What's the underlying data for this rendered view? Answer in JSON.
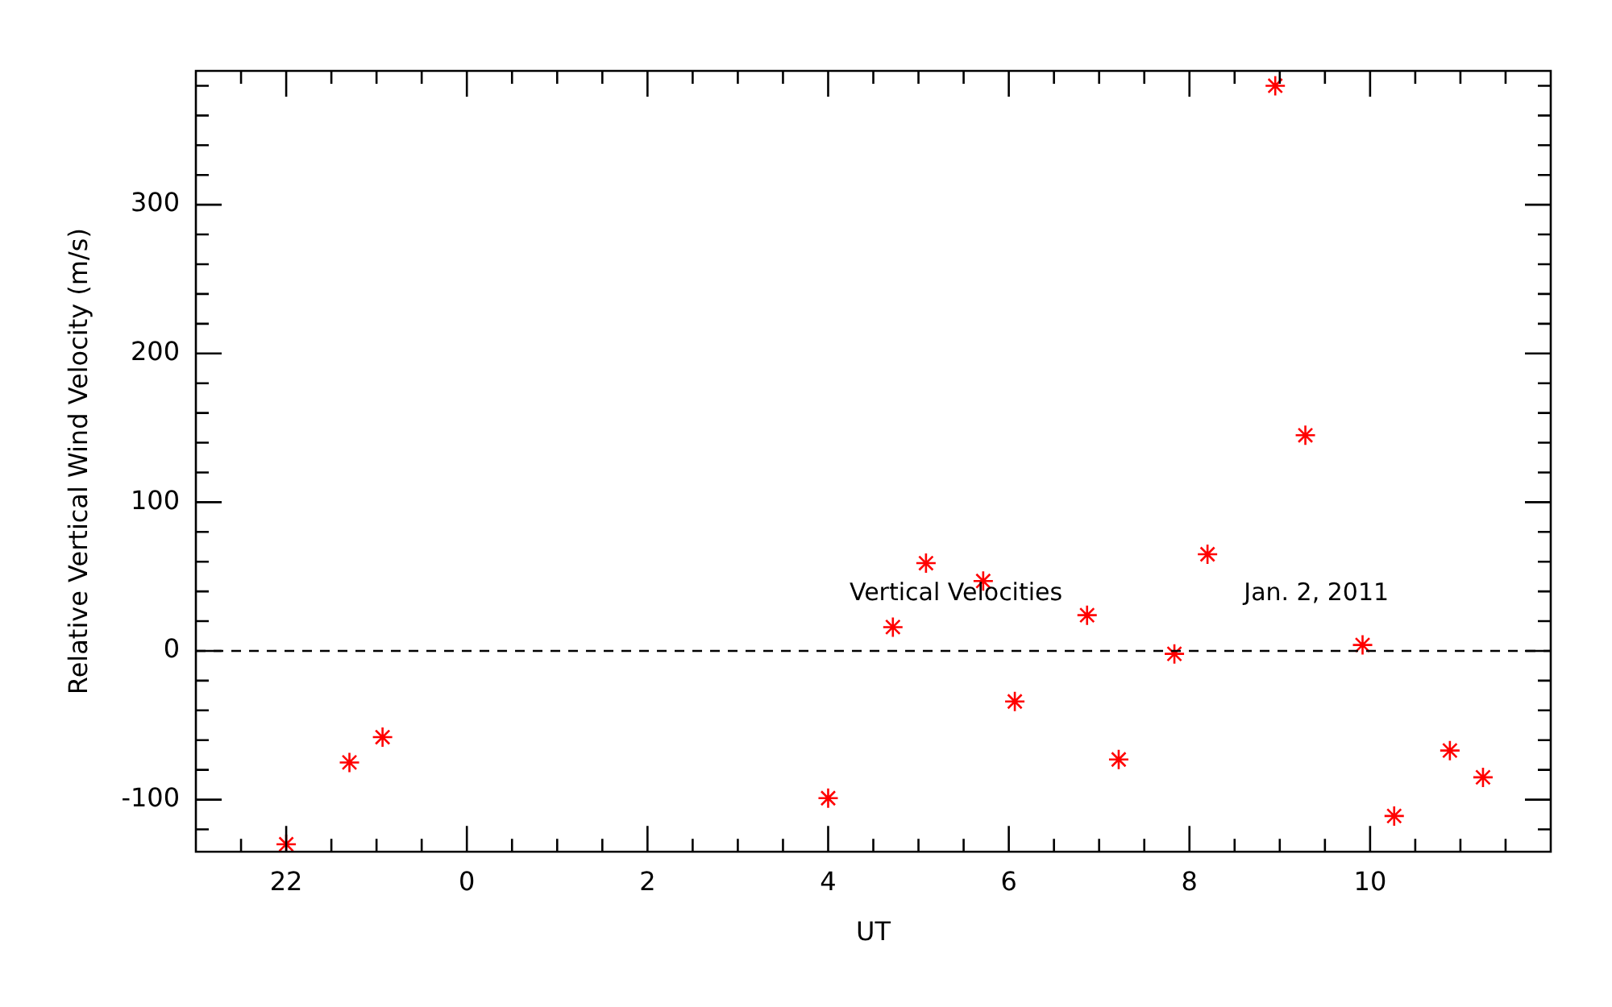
{
  "chart_data": {
    "type": "scatter",
    "xlabel": "UT",
    "ylabel": "Relative Vertical Wind Velocity (m/s)",
    "xlim": [
      "2011-01-01T21:00",
      "2011-01-02T12:00"
    ],
    "xticks": [
      {
        "value": "2011-01-01T21:30",
        "label": null
      },
      {
        "value": "2011-01-01T22:00",
        "label": "22"
      },
      {
        "value": "2011-01-01T22:30",
        "label": null
      },
      {
        "value": "2011-01-01T23:00",
        "label": null
      },
      {
        "value": "2011-01-01T23:30",
        "label": null
      },
      {
        "value": "2011-01-02T00:00",
        "label": "0"
      },
      {
        "value": "2011-01-02T00:30",
        "label": null
      },
      {
        "value": "2011-01-02T01:00",
        "label": null
      },
      {
        "value": "2011-01-02T01:30",
        "label": null
      },
      {
        "value": "2011-01-02T02:00",
        "label": "2"
      },
      {
        "value": "2011-01-02T02:30",
        "label": null
      },
      {
        "value": "2011-01-02T03:00",
        "label": null
      },
      {
        "value": "2011-01-02T03:30",
        "label": null
      },
      {
        "value": "2011-01-02T04:00",
        "label": "4"
      },
      {
        "value": "2011-01-02T04:30",
        "label": null
      },
      {
        "value": "2011-01-02T05:00",
        "label": null
      },
      {
        "value": "2011-01-02T05:30",
        "label": null
      },
      {
        "value": "2011-01-02T06:00",
        "label": "6"
      },
      {
        "value": "2011-01-02T06:30",
        "label": null
      },
      {
        "value": "2011-01-02T07:00",
        "label": null
      },
      {
        "value": "2011-01-02T07:30",
        "label": null
      },
      {
        "value": "2011-01-02T08:00",
        "label": "8"
      },
      {
        "value": "2011-01-02T08:30",
        "label": null
      },
      {
        "value": "2011-01-02T09:00",
        "label": null
      },
      {
        "value": "2011-01-02T09:30",
        "label": null
      },
      {
        "value": "2011-01-02T10:00",
        "label": "10"
      },
      {
        "value": "2011-01-02T10:30",
        "label": null
      },
      {
        "value": "2011-01-02T11:00",
        "label": null
      },
      {
        "value": "2011-01-02T11:30",
        "label": null
      }
    ],
    "ylim": [
      -135,
      390
    ],
    "yticks": [
      {
        "value": -120,
        "label": null
      },
      -100,
      {
        "value": -80,
        "label": null
      },
      {
        "value": -60,
        "label": null
      },
      {
        "value": -40,
        "label": null
      },
      {
        "value": -20,
        "label": null
      },
      0,
      {
        "value": 20,
        "label": null
      },
      {
        "value": 40,
        "label": null
      },
      {
        "value": 60,
        "label": null
      },
      {
        "value": 80,
        "label": null
      },
      100,
      {
        "value": 120,
        "label": null
      },
      {
        "value": 140,
        "label": null
      },
      {
        "value": 160,
        "label": null
      },
      {
        "value": 180,
        "label": null
      },
      200,
      {
        "value": 220,
        "label": null
      },
      {
        "value": 240,
        "label": null
      },
      {
        "value": 260,
        "label": null
      },
      {
        "value": 280,
        "label": null
      },
      300,
      {
        "value": 320,
        "label": null
      },
      {
        "value": 340,
        "label": null
      },
      {
        "value": 360,
        "label": null
      },
      {
        "value": 380,
        "label": null
      }
    ],
    "x": [
      "2011-01-01T22:00",
      "2011-01-01T22:42",
      "2011-01-01T23:04",
      "2011-01-02T04:00",
      "2011-01-02T04:43",
      "2011-01-02T05:05",
      "2011-01-02T05:43",
      "2011-01-02T06:04",
      "2011-01-02T06:52",
      "2011-01-02T07:13",
      "2011-01-02T07:50",
      "2011-01-02T08:12",
      "2011-01-02T08:57",
      "2011-01-02T09:17",
      "2011-01-02T09:55",
      "2011-01-02T10:16",
      "2011-01-02T10:53",
      "2011-01-02T11:15"
    ],
    "series": [
      {
        "color": "#ff0000",
        "values": [
          -130,
          -75,
          -58,
          -99,
          16,
          59,
          47,
          -34,
          24,
          -73,
          -2,
          65,
          380,
          145,
          4,
          -111,
          -67,
          -85
        ]
      }
    ],
    "marker": "cross",
    "grid": false,
    "legend": false,
    "ref_lines": [
      {
        "axis": "y",
        "value": 0,
        "color": "#000000",
        "line_style": "dashed"
      }
    ],
    "annotations": [
      "Vertical Velocities",
      "Jan. 2, 2011"
    ]
  }
}
